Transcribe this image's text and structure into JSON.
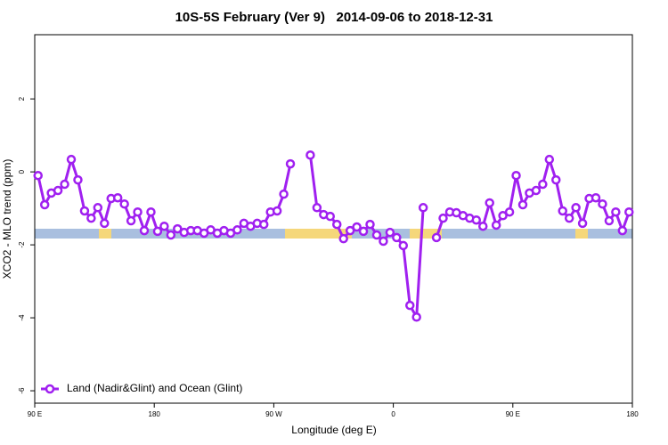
{
  "chart_data": {
    "type": "line",
    "title": "10S-5S February (Ver 9)   2014-09-06 to 2018-12-31",
    "x_label": "Longitude (deg E)",
    "y_label": "XCO2 - MLO trend (ppm)",
    "x": [
      92.5,
      97.5,
      102.5,
      107.5,
      112.5,
      117.5,
      122.5,
      127.5,
      132.5,
      137.5,
      142.5,
      147.5,
      152.5,
      157.5,
      162.5,
      167.5,
      172.5,
      177.5,
      182.5,
      187.5,
      192.5,
      197.5,
      202.5,
      207.5,
      212.5,
      217.5,
      222.5,
      227.5,
      232.5,
      237.5,
      242.5,
      247.5,
      252.5,
      257.5,
      262.5,
      267.5,
      272.5,
      277.5,
      282.5,
      287.5,
      292.5,
      297.5,
      302.5,
      307.5,
      312.5,
      317.5,
      322.5,
      327.5,
      332.5,
      337.5,
      342.5,
      347.5,
      352.5,
      357.5,
      362.5,
      367.5,
      372.5,
      377.5,
      382.5,
      387.5,
      392.5,
      397.5,
      402.5,
      407.5,
      412.5,
      417.5,
      422.5,
      427.5,
      432.5,
      437.5,
      442.5,
      447.5,
      452.5,
      457.5,
      462.5,
      467.5,
      472.5,
      477.5,
      482.5,
      487.5,
      492.5,
      497.5,
      502.5,
      507.5,
      512.5,
      517.5,
      522.5,
      527.5,
      532.5,
      537.5
    ],
    "series": [
      {
        "name": "Land (Nadir&Glint) and Ocean (Glint)",
        "color": "#a020f0",
        "values": [
          -0.1,
          -0.9,
          -0.58,
          -0.51,
          -0.34,
          0.34,
          -0.22,
          -1.07,
          -1.27,
          -0.98,
          -1.41,
          -0.73,
          -0.71,
          -0.88,
          -1.34,
          -1.1,
          -1.61,
          -1.1,
          -1.63,
          -1.49,
          -1.73,
          -1.56,
          -1.66,
          -1.61,
          -1.61,
          -1.68,
          -1.59,
          -1.68,
          -1.61,
          -1.68,
          -1.59,
          -1.41,
          -1.49,
          -1.41,
          -1.44,
          -1.1,
          -1.07,
          -0.61,
          0.22,
          null,
          null,
          0.46,
          -0.98,
          -1.17,
          -1.22,
          -1.44,
          -1.83,
          -1.61,
          -1.51,
          -1.63,
          -1.44,
          -1.73,
          -1.9,
          -1.66,
          -1.8,
          -2.02,
          -3.66,
          -3.98,
          -0.98,
          null,
          -1.8,
          -1.27,
          -1.1,
          -1.12,
          -1.2,
          -1.27,
          -1.32,
          -1.49,
          -0.85,
          -1.46,
          -1.2,
          -1.1,
          -0.1,
          -0.9,
          -0.58,
          -0.51,
          -0.34,
          0.34,
          -0.22,
          -1.07,
          -1.27,
          -0.98,
          -1.41,
          -0.73,
          -0.71,
          -0.88,
          -1.34,
          -1.1,
          -1.61,
          -1.1
        ]
      }
    ],
    "xlim": [
      90,
      540
    ],
    "xticks": [
      {
        "value": 90,
        "label": "90 E"
      },
      180,
      {
        "value": 270,
        "label": "90 W"
      },
      {
        "value": 360,
        "label": "0"
      },
      {
        "value": 450,
        "label": "90 E"
      },
      {
        "value": 540,
        "label": "180"
      }
    ],
    "ylim": [
      -6.34,
      3.76
    ],
    "yticks": [
      -6,
      -4,
      -2,
      0,
      2
    ],
    "legend": "bottomleft"
  }
}
